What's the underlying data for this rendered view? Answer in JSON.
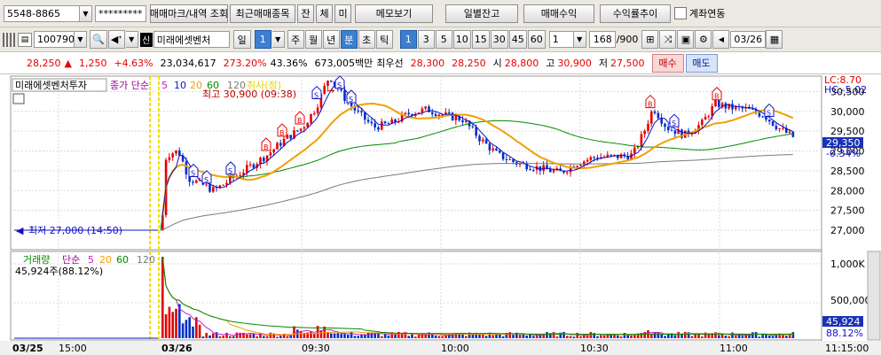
{
  "toolbar1": {
    "account": "5548-8865",
    "password": "*********",
    "btn_trade_mark": "매매마크/내역 조회",
    "btn_recent_items": "최근매매종목",
    "btn_balance": "잔",
    "btn_fill": "체",
    "btn_unfilled": "미",
    "btn_memo": "메모보기",
    "btn_daily_balance": "일별잔고",
    "btn_trade_profit": "매매수익",
    "btn_return_trend": "수익률추이",
    "chk_account_link": "계좌연동"
  },
  "toolbar2": {
    "code": "100790",
    "credit_badge": "신",
    "stock_name": "미래에셋벤처",
    "period_selected": "일",
    "period_count": "1",
    "periods": [
      "주",
      "월",
      "년",
      "분",
      "초",
      "틱"
    ],
    "minute_options": [
      "1",
      "3",
      "5",
      "10",
      "15",
      "30",
      "45",
      "60"
    ],
    "interval": "1",
    "data_count": "168",
    "data_total": "/900",
    "date": "03/26"
  },
  "quote": {
    "price": "28,250",
    "change_arrow": "▲",
    "change": "1,250",
    "change_pct": "+4.63%",
    "volume": "23,034,617",
    "vol_ratio": "273.20%",
    "turnover": "43.36%",
    "amount": "673,005백만",
    "best_ask_label": "최우선",
    "best_ask": "28,300",
    "best_bid": "28,250",
    "open_label": "시",
    "open": "28,800",
    "high_label": "고",
    "high": "30,900",
    "low_label": "저",
    "low": "27,500",
    "buy_btn": "매수",
    "sell_btn": "매도"
  },
  "chart": {
    "stock_label": "미래에셋벤처투자",
    "ma_label": "종가 단순",
    "ma_periods": [
      "5",
      "10",
      "20",
      "60",
      "120"
    ],
    "hint_label": "취사(정)",
    "lc": "LC:8.70",
    "hc": "HC:-5.02",
    "high_annot": "최고 30,900 (09:38)",
    "low_annot": "최저 27,000 (14:50)",
    "current_price": "29,350",
    "current_pct": "-0.34%",
    "price_ticks": [
      "30,500",
      "30,000",
      "29,500",
      "29,000",
      "28,500",
      "28,000",
      "27,500",
      "27,000"
    ],
    "volume_label": "거래량",
    "vol_value": "45,924주(88.12%)",
    "vol_ticks": [
      "1,000K",
      "500,000"
    ],
    "vol_current": "45,924",
    "vol_pct": "88.12%",
    "time_labels": [
      "03/25",
      "15:00",
      "03/26",
      "09:30",
      "10:00",
      "10:30",
      "11:00",
      "11:15:00"
    ]
  },
  "colors": {
    "up": "#e60000",
    "down": "#0030c8",
    "ma5": "#0000c8",
    "ma20": "#f0a000",
    "ma60": "#008000",
    "ma120": "#808080"
  }
}
